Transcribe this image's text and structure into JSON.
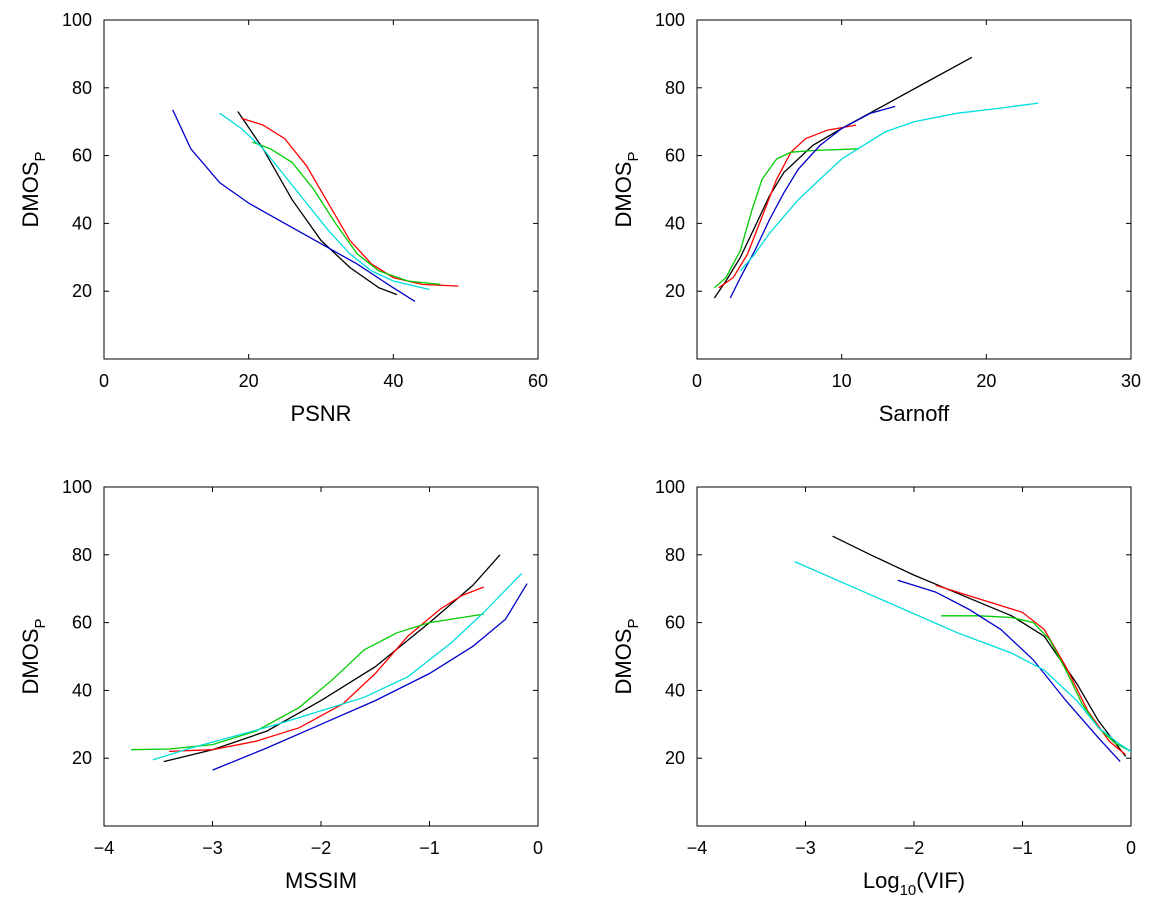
{
  "figure": {
    "colors": {
      "black": "#000000",
      "red": "#ff0000",
      "green": "#00cc00",
      "blue": "#0000cc",
      "cyan": "#00dddd"
    }
  },
  "chart_data": [
    {
      "type": "line",
      "title": "",
      "xlabel": "PSNR",
      "ylabel": "DMOS",
      "ylabel_sub": "P",
      "xlim": [
        0,
        60
      ],
      "ylim": [
        0,
        100
      ],
      "xticks": [
        0,
        20,
        40,
        60
      ],
      "yticks": [
        20,
        40,
        60,
        80,
        100
      ],
      "grid": false,
      "series": [
        {
          "color": "#000000",
          "x": [
            18.5,
            22,
            26,
            30,
            34,
            38,
            40.5
          ],
          "y": [
            73,
            62,
            47,
            35,
            27,
            21,
            19
          ]
        },
        {
          "color": "#ff0000",
          "x": [
            19,
            22,
            25,
            28,
            31,
            34,
            37,
            40,
            44,
            49
          ],
          "y": [
            71,
            69,
            65,
            57,
            46,
            35,
            28,
            24,
            22,
            21.5
          ]
        },
        {
          "color": "#00cc00",
          "x": [
            20.5,
            23,
            26,
            29,
            32,
            35,
            38,
            42,
            46.5
          ],
          "y": [
            64,
            62,
            58,
            50,
            40,
            31,
            26,
            23,
            22
          ]
        },
        {
          "color": "#0000cc",
          "x": [
            9.5,
            12,
            16,
            20,
            25,
            30,
            35,
            40,
            43
          ],
          "y": [
            73.5,
            62,
            52,
            46,
            40,
            34,
            28,
            21,
            17
          ]
        },
        {
          "color": "#00dddd",
          "x": [
            16,
            19,
            22,
            25,
            28,
            31,
            34,
            37,
            40,
            45
          ],
          "y": [
            72.5,
            68,
            62,
            54,
            46,
            38,
            31,
            26,
            23,
            20.5
          ]
        }
      ]
    },
    {
      "type": "line",
      "title": "",
      "xlabel": "Sarnoff",
      "ylabel": "DMOS",
      "ylabel_sub": "P",
      "xlim": [
        0,
        30
      ],
      "ylim": [
        0,
        100
      ],
      "xticks": [
        0,
        10,
        20,
        30
      ],
      "yticks": [
        20,
        40,
        60,
        80,
        100
      ],
      "grid": false,
      "series": [
        {
          "color": "#000000",
          "x": [
            1.2,
            2,
            3,
            4,
            5,
            6,
            8,
            10,
            13,
            16,
            19
          ],
          "y": [
            18,
            23,
            30,
            39,
            48,
            55,
            63,
            68,
            75,
            82,
            89
          ]
        },
        {
          "color": "#ff0000",
          "x": [
            1.5,
            2.5,
            3.5,
            4.5,
            5.5,
            6.5,
            7.5,
            9,
            11
          ],
          "y": [
            21,
            24,
            31,
            42,
            53,
            61,
            65,
            67.5,
            69
          ]
        },
        {
          "color": "#00cc00",
          "x": [
            1.2,
            2,
            3,
            3.8,
            4.5,
            5.5,
            6.5,
            8,
            11.2
          ],
          "y": [
            21,
            24,
            32,
            44,
            53,
            59,
            61,
            61.5,
            62
          ]
        },
        {
          "color": "#0000cc",
          "x": [
            2.3,
            3,
            4,
            5,
            6,
            7,
            8.5,
            10,
            12,
            13.7
          ],
          "y": [
            18,
            24,
            32,
            41,
            49,
            56,
            63,
            68,
            72.5,
            74.5
          ]
        },
        {
          "color": "#00dddd",
          "x": [
            3,
            4,
            5,
            6,
            7,
            8,
            9,
            10,
            11.5,
            13,
            15,
            18,
            21,
            23.6
          ],
          "y": [
            26,
            31,
            37,
            42,
            47,
            51,
            55,
            59,
            63,
            67,
            70,
            72.5,
            74,
            75.5
          ]
        }
      ]
    },
    {
      "type": "line",
      "title": "",
      "xlabel": "MSSIM",
      "ylabel": "DMOS",
      "ylabel_sub": "P",
      "xlim": [
        -4,
        0
      ],
      "ylim": [
        0,
        100
      ],
      "xticks": [
        -4,
        -3,
        -2,
        -1,
        0
      ],
      "yticks": [
        20,
        40,
        60,
        80,
        100
      ],
      "grid": false,
      "series": [
        {
          "color": "#000000",
          "x": [
            -3.45,
            -3,
            -2.5,
            -2,
            -1.5,
            -1,
            -0.6,
            -0.35
          ],
          "y": [
            19,
            22.5,
            28,
            37,
            47,
            60,
            71,
            80
          ]
        },
        {
          "color": "#ff0000",
          "x": [
            -3.4,
            -3,
            -2.6,
            -2.2,
            -1.8,
            -1.5,
            -1.2,
            -0.9,
            -0.7,
            -0.5
          ],
          "y": [
            22,
            22.5,
            25,
            29,
            36,
            45,
            56,
            64,
            68,
            70.5
          ]
        },
        {
          "color": "#00cc00",
          "x": [
            -3.75,
            -3.4,
            -3,
            -2.6,
            -2.2,
            -1.9,
            -1.6,
            -1.3,
            -1,
            -0.5
          ],
          "y": [
            22.5,
            22.7,
            24,
            28,
            35,
            43,
            52,
            57,
            60,
            62.5
          ]
        },
        {
          "color": "#0000cc",
          "x": [
            -3,
            -2.5,
            -2,
            -1.5,
            -1,
            -0.6,
            -0.3,
            -0.1
          ],
          "y": [
            16.5,
            23,
            30,
            37,
            45,
            53,
            61,
            71.5
          ]
        },
        {
          "color": "#00dddd",
          "x": [
            -3.55,
            -3.2,
            -2.8,
            -2.4,
            -2,
            -1.6,
            -1.2,
            -0.8,
            -0.5,
            -0.15
          ],
          "y": [
            19.5,
            23,
            26.5,
            30,
            34,
            38,
            44,
            54,
            63,
            74.5
          ]
        }
      ]
    },
    {
      "type": "line",
      "title": "",
      "xlabel": "Log",
      "xlabel_sub": "10",
      "xlabel_suffix": "(VIF)",
      "ylabel": "DMOS",
      "ylabel_sub": "P",
      "xlim": [
        -4,
        0
      ],
      "ylim": [
        0,
        100
      ],
      "xticks": [
        -4,
        -3,
        -2,
        -1,
        0
      ],
      "yticks": [
        20,
        40,
        60,
        80,
        100
      ],
      "grid": false,
      "series": [
        {
          "color": "#000000",
          "x": [
            -2.75,
            -2.4,
            -2,
            -1.7,
            -1.4,
            -1.1,
            -0.8,
            -0.5,
            -0.3,
            -0.05
          ],
          "y": [
            85.5,
            80,
            74,
            70,
            66,
            62,
            56,
            42,
            31,
            20.5
          ]
        },
        {
          "color": "#ff0000",
          "x": [
            -1.8,
            -1.5,
            -1.2,
            -1,
            -0.8,
            -0.6,
            -0.4,
            -0.2,
            -0.05
          ],
          "y": [
            71,
            68,
            65,
            63,
            58,
            47,
            34,
            25,
            21
          ]
        },
        {
          "color": "#00cc00",
          "x": [
            -1.75,
            -1.4,
            -1.1,
            -0.9,
            -0.75,
            -0.6,
            -0.45,
            -0.3,
            -0.15,
            0
          ],
          "y": [
            62,
            62,
            61.5,
            60,
            55,
            46,
            36,
            29,
            24.5,
            22
          ]
        },
        {
          "color": "#0000cc",
          "x": [
            -2.15,
            -1.8,
            -1.5,
            -1.2,
            -0.9,
            -0.6,
            -0.3,
            -0.1
          ],
          "y": [
            72.5,
            69,
            64,
            58,
            49,
            37,
            26,
            19
          ]
        },
        {
          "color": "#00dddd",
          "x": [
            -3.1,
            -2.6,
            -2.1,
            -1.6,
            -1.1,
            -0.8,
            -0.5,
            -0.3,
            -0.1,
            0
          ],
          "y": [
            78,
            71,
            64,
            57,
            51,
            46,
            37,
            29,
            24,
            22
          ]
        }
      ]
    }
  ]
}
